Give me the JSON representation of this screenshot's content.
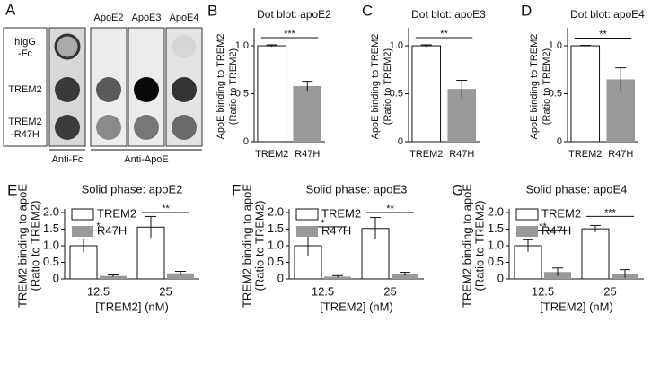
{
  "blot": {
    "panel": "A",
    "row_labels": [
      [
        "hIgG",
        "-Fc"
      ],
      [
        "TREM2"
      ],
      [
        "TREM2",
        "-R47H"
      ]
    ],
    "column_labels": [
      "ApoE2",
      "ApoE3",
      "ApoE4"
    ],
    "antibody_labels": [
      "Anti-Fc",
      "Anti-ApoE"
    ]
  },
  "chart_data": [
    {
      "type": "bar",
      "panel": "B",
      "title": "Dot blot: apoE2",
      "ylabel": [
        "ApoE binding to TREM2",
        "(Ratio to TREM2)"
      ],
      "categories": [
        "TREM2",
        "R47H"
      ],
      "values": [
        1.0,
        0.58
      ],
      "errors": [
        0.01,
        0.05
      ],
      "colors": [
        "#ffffff",
        "#999999"
      ],
      "ylim": [
        0,
        1.15
      ],
      "yticks": [
        0,
        0.5,
        {
          "value": 1,
          "label": "1.0"
        }
      ],
      "significance": [
        "***"
      ]
    },
    {
      "type": "bar",
      "panel": "C",
      "title": "Dot blot: apoE3",
      "ylabel": [
        "ApoE binding to TREM2",
        "(Ratio to TREM2)"
      ],
      "categories": [
        "TREM2",
        "R47H"
      ],
      "values": [
        1.0,
        0.55
      ],
      "errors": [
        0.01,
        0.09
      ],
      "colors": [
        "#ffffff",
        "#999999"
      ],
      "ylim": [
        0,
        1.15
      ],
      "yticks": [
        0,
        0.5,
        {
          "value": 1,
          "label": "1.0"
        }
      ],
      "significance": [
        "**"
      ]
    },
    {
      "type": "bar",
      "panel": "D",
      "title": "Dot blot: apoE4",
      "ylabel": [
        "ApoE binding to TREM2",
        "(Ratio to TREM2)"
      ],
      "categories": [
        "TREM2",
        "R47H"
      ],
      "values": [
        1.0,
        0.65
      ],
      "errors": [
        0.005,
        0.12
      ],
      "colors": [
        "#ffffff",
        "#999999"
      ],
      "ylim": [
        0,
        1.15
      ],
      "yticks": [
        0,
        0.5,
        {
          "value": 1,
          "label": "1.0"
        }
      ],
      "significance": [
        "**"
      ]
    },
    {
      "type": "grouped_bar",
      "panel": "E",
      "title": "Solid phase: apoE2",
      "ylabel": [
        "TREM2 binding to apoE",
        "(Ratio to TREM2)"
      ],
      "xlabel": "[TREM2] (nM)",
      "categories": [
        "12.5",
        "25"
      ],
      "series": [
        {
          "name": "TREM2",
          "color": "#ffffff",
          "values": [
            1.0,
            1.56
          ],
          "errors": [
            0.2,
            0.32
          ]
        },
        {
          "name": "R47H",
          "color": "#999999",
          "values": [
            0.09,
            0.17
          ],
          "errors": [
            0.03,
            0.06
          ]
        }
      ],
      "ylim": [
        0,
        2
      ],
      "yticks": [
        0,
        0.5,
        {
          "value": 1,
          "label": "1.0"
        },
        1.5,
        {
          "value": 2,
          "label": "2.0"
        }
      ],
      "legend": "upper left",
      "significance": [
        "*",
        "**"
      ]
    },
    {
      "type": "grouped_bar",
      "panel": "F",
      "title": "Solid phase: apoE3",
      "ylabel": [
        "TREM2 binding to apoE",
        "(Ratio to TREM2)"
      ],
      "xlabel": "[TREM2] (nM)",
      "categories": [
        "12.5",
        "25"
      ],
      "series": [
        {
          "name": "TREM2",
          "color": "#ffffff",
          "values": [
            1.0,
            1.52
          ],
          "errors": [
            0.3,
            0.33
          ]
        },
        {
          "name": "R47H",
          "color": "#999999",
          "values": [
            0.07,
            0.15
          ],
          "errors": [
            0.03,
            0.05
          ]
        }
      ],
      "ylim": [
        0,
        2
      ],
      "yticks": [
        0,
        0.5,
        {
          "value": 1,
          "label": "1.0"
        },
        1.5,
        {
          "value": 2,
          "label": "2.0"
        }
      ],
      "legend": "upper left",
      "significance": [
        "*",
        "**"
      ]
    },
    {
      "type": "grouped_bar",
      "panel": "G",
      "title": "Solid phase: apoE4",
      "ylabel": [
        "TREM2 binding to apoE",
        "(Ratio to TREM2)"
      ],
      "xlabel": "[TREM2] (nM)",
      "categories": [
        "12.5",
        "25"
      ],
      "series": [
        {
          "name": "TREM2",
          "color": "#ffffff",
          "values": [
            1.0,
            1.51
          ],
          "errors": [
            0.18,
            0.1
          ]
        },
        {
          "name": "R47H",
          "color": "#999999",
          "values": [
            0.21,
            0.16
          ],
          "errors": [
            0.12,
            0.12
          ]
        }
      ],
      "ylim": [
        0,
        2
      ],
      "yticks": [
        0,
        0.5,
        {
          "value": 1,
          "label": "1.0"
        },
        1.5,
        {
          "value": 2,
          "label": "2.0"
        }
      ],
      "legend": "upper left",
      "significance": [
        "**",
        "***"
      ]
    }
  ]
}
